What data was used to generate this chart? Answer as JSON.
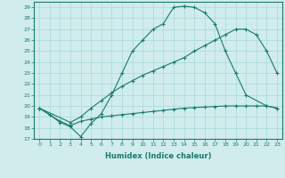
{
  "xlabel": "Humidex (Indice chaleur)",
  "line1_x": [
    0,
    1,
    2,
    3,
    4,
    5,
    6,
    7,
    8,
    9,
    10,
    11,
    12,
    13,
    14,
    15,
    16,
    17,
    18,
    19,
    20,
    22,
    23
  ],
  "line1_y": [
    19.8,
    19.2,
    18.5,
    18.1,
    17.2,
    18.4,
    19.3,
    21.0,
    23.0,
    25.0,
    26.0,
    27.0,
    27.5,
    29.0,
    29.1,
    29.0,
    28.5,
    27.5,
    25.0,
    23.0,
    21.0,
    20.0,
    19.8
  ],
  "line2_x": [
    0,
    3,
    4,
    5,
    6,
    7,
    8,
    9,
    10,
    11,
    12,
    13,
    14,
    15,
    16,
    17,
    18,
    19,
    20,
    21,
    22,
    23
  ],
  "line2_y": [
    19.8,
    18.5,
    19.0,
    19.8,
    20.5,
    21.2,
    21.8,
    22.3,
    22.8,
    23.2,
    23.6,
    24.0,
    24.4,
    25.0,
    25.5,
    26.0,
    26.5,
    27.0,
    27.0,
    26.5,
    25.0,
    23.0
  ],
  "line3_x": [
    0,
    2,
    3,
    4,
    5,
    6,
    7,
    8,
    9,
    10,
    11,
    12,
    13,
    14,
    15,
    16,
    17,
    18,
    19,
    20,
    21,
    22,
    23
  ],
  "line3_y": [
    19.8,
    18.6,
    18.2,
    18.6,
    18.8,
    19.0,
    19.1,
    19.2,
    19.3,
    19.4,
    19.5,
    19.6,
    19.7,
    19.8,
    19.85,
    19.9,
    19.95,
    20.0,
    20.0,
    20.0,
    20.0,
    20.0,
    19.8
  ],
  "color": "#1a7a6e",
  "bg_color": "#d0ecec",
  "grid_color": "#a8d8d8",
  "ylim": [
    17,
    29.5
  ],
  "xlim": [
    -0.5,
    23.5
  ],
  "yticks": [
    17,
    18,
    19,
    20,
    21,
    22,
    23,
    24,
    25,
    26,
    27,
    28,
    29
  ],
  "xticks": [
    0,
    1,
    2,
    3,
    4,
    5,
    6,
    7,
    8,
    9,
    10,
    11,
    12,
    13,
    14,
    15,
    16,
    17,
    18,
    19,
    20,
    21,
    22,
    23
  ]
}
